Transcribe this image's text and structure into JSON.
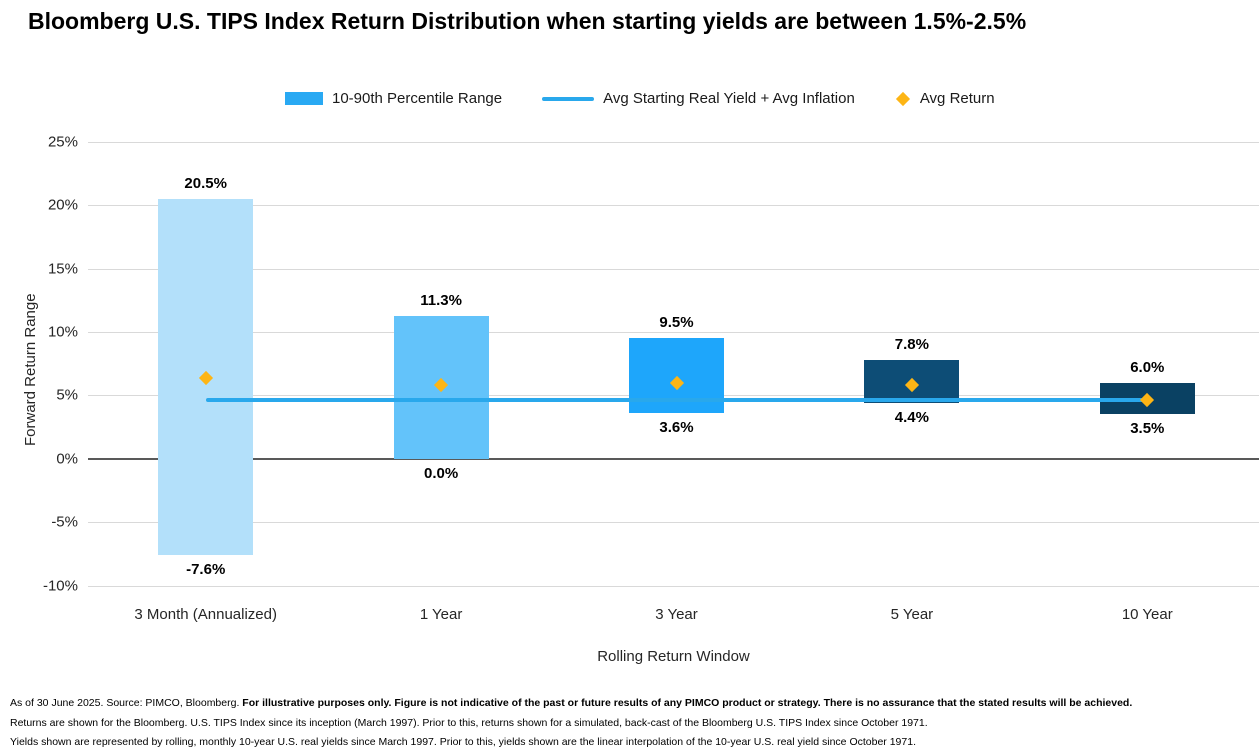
{
  "title": "Bloomberg U.S. TIPS Index Return Distribution when starting yields are between 1.5%-2.5%",
  "legend": {
    "items": [
      {
        "label": "10-90th Percentile Range",
        "swatch": "bar",
        "color": "#29A9F3"
      },
      {
        "label": "Avg Starting Real Yield + Avg Inflation",
        "swatch": "line",
        "color": "#29A8EC"
      },
      {
        "label": "Avg Return",
        "swatch": "diamond",
        "color": "#FDB515"
      }
    ]
  },
  "chart_data": {
    "type": "bar",
    "subtype": "floating-range-bars-with-line-and-diamond-markers",
    "title": "Bloomberg U.S. TIPS Index Return Distribution when starting yields are between 1.5%-2.5%",
    "categories": [
      "3 Month (Annualized)",
      "1 Year",
      "3 Year",
      "5 Year",
      "10 Year"
    ],
    "series": [
      {
        "name": "10-90th Percentile Range",
        "type": "range-bar",
        "low": [
          -7.6,
          0.0,
          3.6,
          4.4,
          3.5
        ],
        "high": [
          20.5,
          11.3,
          9.5,
          7.8,
          6.0
        ],
        "labels_high": [
          "20.5%",
          "11.3%",
          "9.5%",
          "7.8%",
          "6.0%"
        ],
        "labels_low": [
          "-7.6%",
          "0.0%",
          "3.6%",
          "4.4%",
          "3.5%"
        ],
        "bar_colors": [
          "#B3E0FA",
          "#63C3FA",
          "#1EA6FB",
          "#0D4D76",
          "#0A4163"
        ]
      },
      {
        "name": "Avg Starting Real Yield + Avg Inflation",
        "type": "line",
        "value": 4.6,
        "color": "#29A8EC"
      },
      {
        "name": "Avg Return",
        "type": "scatter",
        "marker": "diamond",
        "values": [
          6.4,
          5.8,
          6.0,
          5.8,
          4.6
        ],
        "color": "#FDB515"
      }
    ],
    "xlabel": "Rolling Return Window",
    "ylabel": "Forward Return Range",
    "ylim": [
      -10,
      25
    ],
    "yticks": [
      25,
      20,
      15,
      10,
      5,
      0,
      -5,
      -10
    ],
    "ytick_labels": [
      "25%",
      "20%",
      "15%",
      "10%",
      "5%",
      "0%",
      "-5%",
      "-10%"
    ],
    "grid": true,
    "zero_line": true,
    "legend_position": "top"
  },
  "footnotes": {
    "line1_regular": "As of 30 June 2025. Source: PIMCO, Bloomberg. ",
    "line1_bold": "For illustrative purposes only. Figure is not indicative of the past or future results of any PIMCO product or strategy. There is no assurance that the stated results will be achieved.",
    "line2": "Returns are shown for the Bloomberg. U.S. TIPS Index since its inception (March 1997). Prior to this, returns shown for a simulated, back-cast of the Bloomberg U.S. TIPS Index since October 1971.",
    "line3": "Yields shown are represented by rolling, monthly 10-year U.S. real yields since March 1997. Prior to this, yields shown are the linear interpolation of the 10-year U.S. real yield since October 1971."
  }
}
